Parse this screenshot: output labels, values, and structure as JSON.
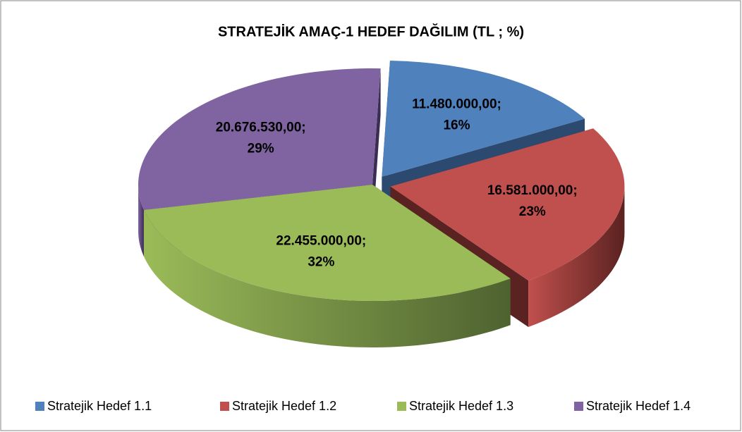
{
  "chart_data": {
    "type": "pie3d",
    "title": "STRATEJİK AMAÇ-1  HEDEF DAĞILIM (TL ; %)",
    "categories": [
      "Stratejik Hedef 1.1",
      "Stratejik Hedef 1.2",
      "Stratejik Hedef 1.3",
      "Stratejik Hedef 1.4"
    ],
    "values": [
      11480000,
      16581000,
      22455000,
      20676530
    ],
    "value_labels": [
      "11.480.000,00;",
      "16.581.000,00;",
      "22.455.000,00;",
      "20.676.530,00;"
    ],
    "percent_labels": [
      "16%",
      "23%",
      "32%",
      "29%"
    ],
    "colors": [
      "#4f81bd",
      "#c0504d",
      "#9bbb59",
      "#8064a2"
    ],
    "side_colors": [
      "#2c4a70",
      "#5a2220",
      "#4e6230",
      "#3a2d52"
    ],
    "exploded": [
      true,
      true,
      false,
      false
    ],
    "legend": "bottom"
  }
}
